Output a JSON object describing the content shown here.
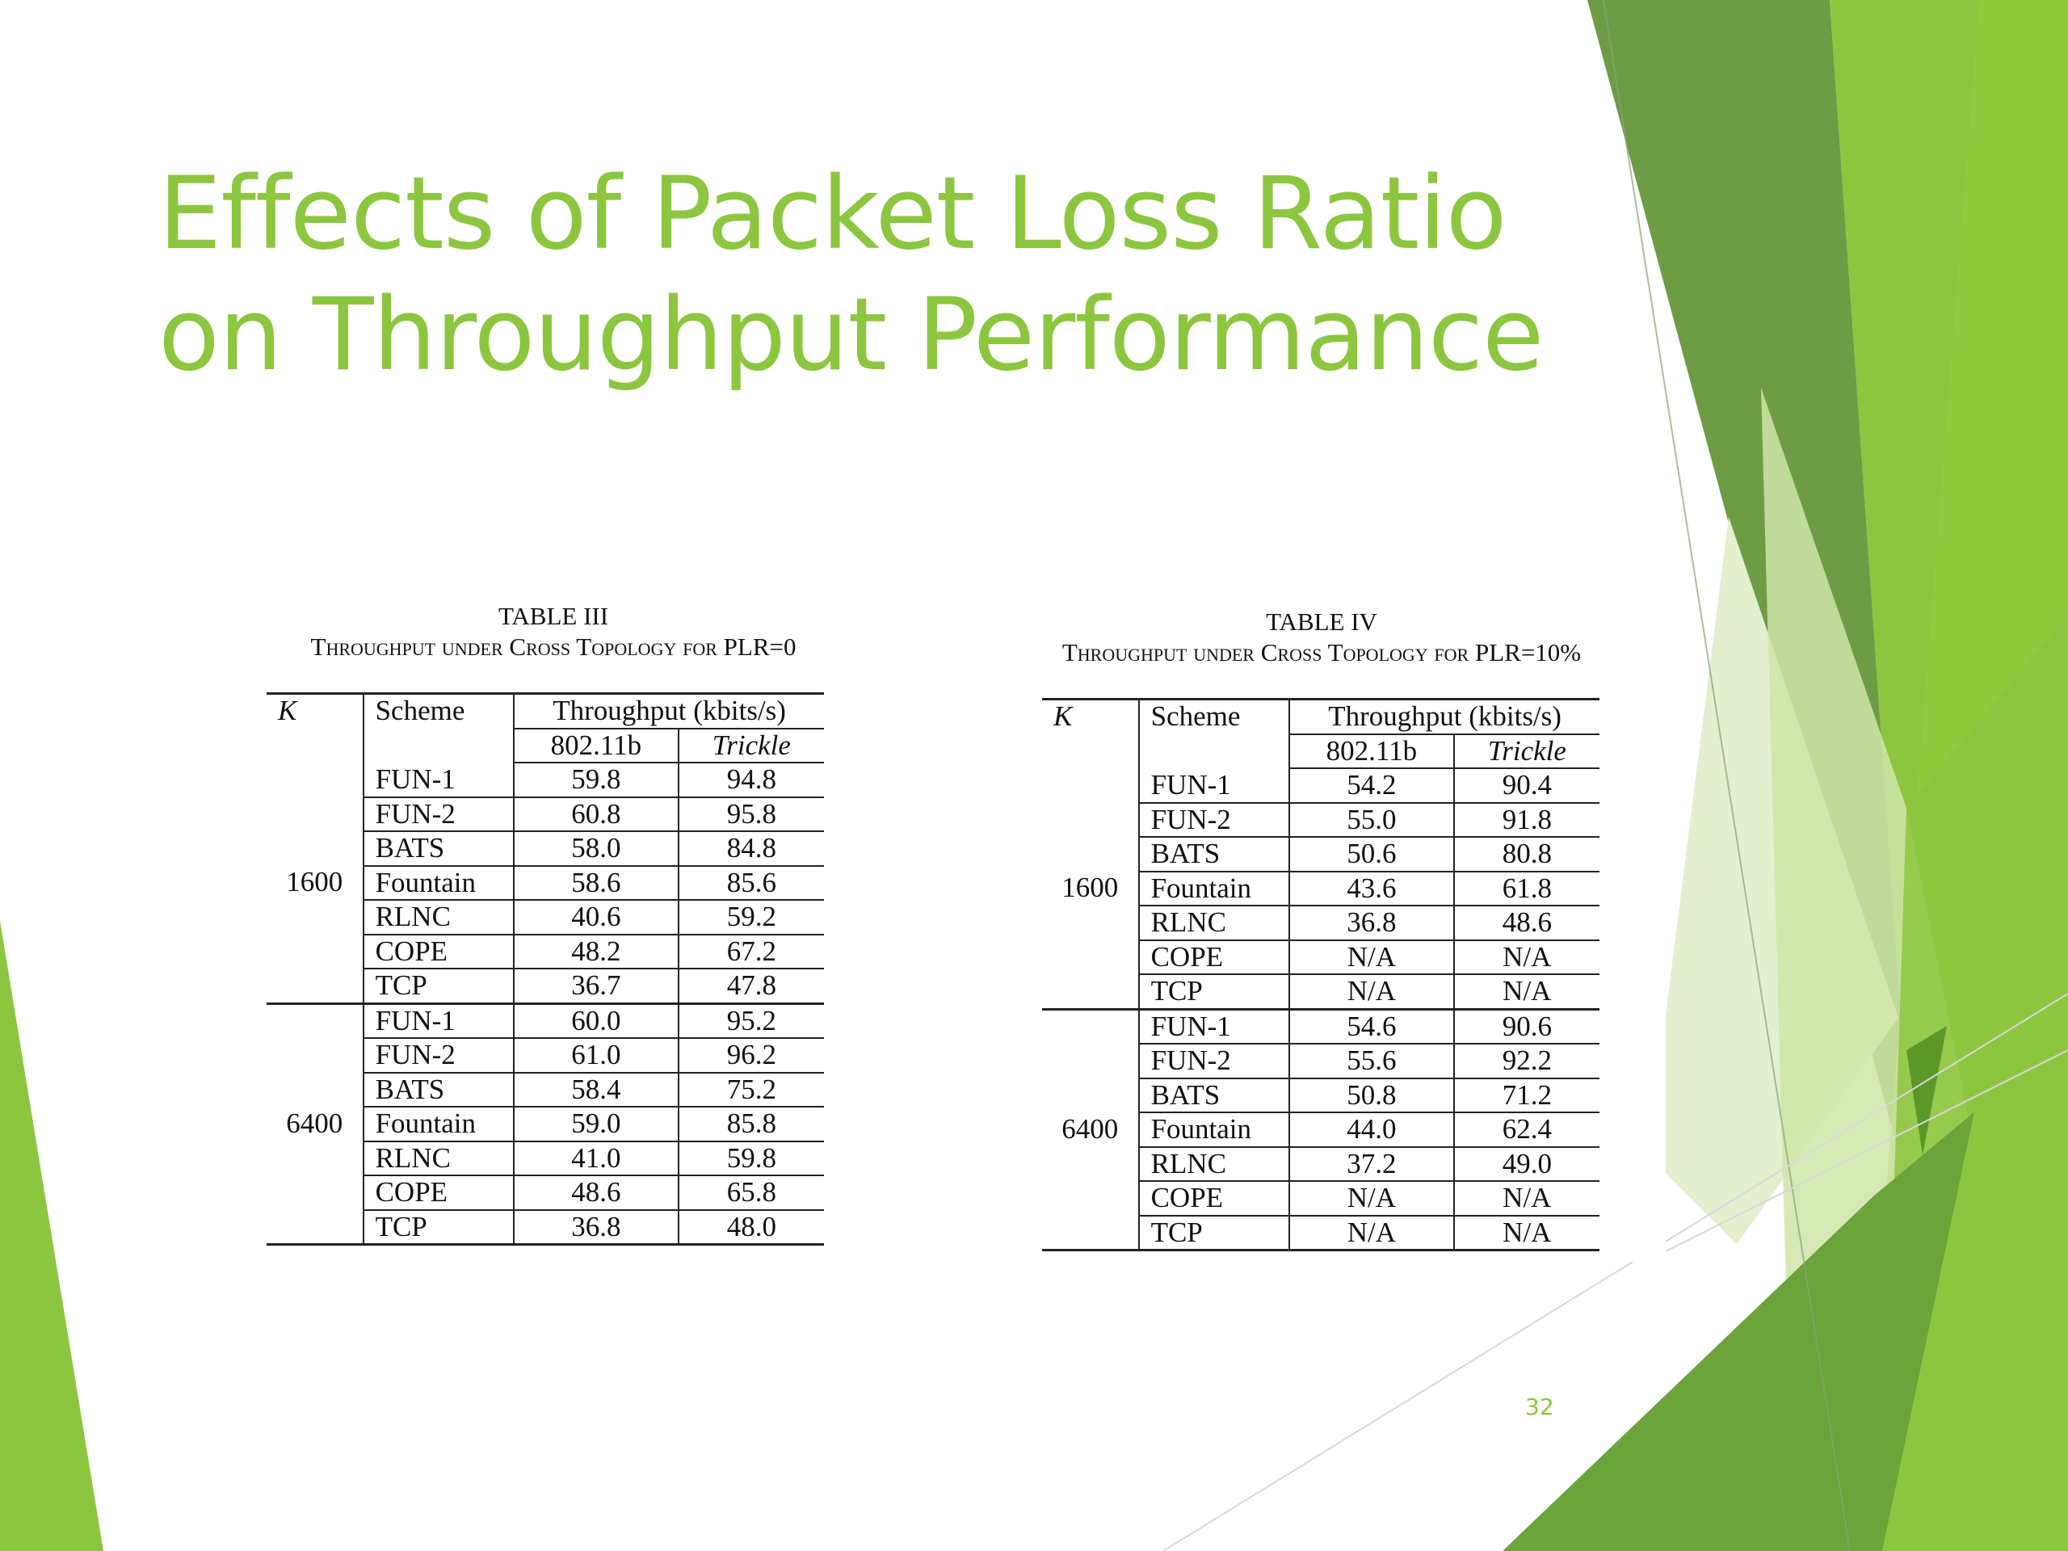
{
  "slide": {
    "title_line1": "Effects of Packet Loss Ratio",
    "title_line2": "on Throughput Performance",
    "page_number": "32",
    "colors": {
      "title": "#8cc63f",
      "accent_light": "#d6e9b5",
      "accent_mid": "#8cc63f",
      "accent_dark": "#6d9c45",
      "accent_deep": "#4e8a21"
    }
  },
  "table3": {
    "number": "TABLE III",
    "caption": "Throughput under Cross Topology for PLR=0",
    "columns": {
      "k": "K",
      "scheme": "Scheme",
      "throughput": "Throughput (kbits/s)",
      "col_a": "802.11b",
      "col_b": "Trickle"
    },
    "groups": [
      {
        "k": "1600",
        "rows": [
          {
            "scheme": "FUN-1",
            "a": "59.8",
            "b": "94.8"
          },
          {
            "scheme": "FUN-2",
            "a": "60.8",
            "b": "95.8"
          },
          {
            "scheme": "BATS",
            "a": "58.0",
            "b": "84.8"
          },
          {
            "scheme": "Fountain",
            "a": "58.6",
            "b": "85.6"
          },
          {
            "scheme": "RLNC",
            "a": "40.6",
            "b": "59.2"
          },
          {
            "scheme": "COPE",
            "a": "48.2",
            "b": "67.2"
          },
          {
            "scheme": "TCP",
            "a": "36.7",
            "b": "47.8"
          }
        ]
      },
      {
        "k": "6400",
        "rows": [
          {
            "scheme": "FUN-1",
            "a": "60.0",
            "b": "95.2"
          },
          {
            "scheme": "FUN-2",
            "a": "61.0",
            "b": "96.2"
          },
          {
            "scheme": "BATS",
            "a": "58.4",
            "b": "75.2"
          },
          {
            "scheme": "Fountain",
            "a": "59.0",
            "b": "85.8"
          },
          {
            "scheme": "RLNC",
            "a": "41.0",
            "b": "59.8"
          },
          {
            "scheme": "COPE",
            "a": "48.6",
            "b": "65.8"
          },
          {
            "scheme": "TCP",
            "a": "36.8",
            "b": "48.0"
          }
        ]
      }
    ]
  },
  "table4": {
    "number": "TABLE IV",
    "caption": "Throughput under Cross Topology for PLR=10%",
    "columns": {
      "k": "K",
      "scheme": "Scheme",
      "throughput": "Throughput (kbits/s)",
      "col_a": "802.11b",
      "col_b": "Trickle"
    },
    "groups": [
      {
        "k": "1600",
        "rows": [
          {
            "scheme": "FUN-1",
            "a": "54.2",
            "b": "90.4"
          },
          {
            "scheme": "FUN-2",
            "a": "55.0",
            "b": "91.8"
          },
          {
            "scheme": "BATS",
            "a": "50.6",
            "b": "80.8"
          },
          {
            "scheme": "Fountain",
            "a": "43.6",
            "b": "61.8"
          },
          {
            "scheme": "RLNC",
            "a": "36.8",
            "b": "48.6"
          },
          {
            "scheme": "COPE",
            "a": "N/A",
            "b": "N/A"
          },
          {
            "scheme": "TCP",
            "a": "N/A",
            "b": "N/A"
          }
        ]
      },
      {
        "k": "6400",
        "rows": [
          {
            "scheme": "FUN-1",
            "a": "54.6",
            "b": "90.6"
          },
          {
            "scheme": "FUN-2",
            "a": "55.6",
            "b": "92.2"
          },
          {
            "scheme": "BATS",
            "a": "50.8",
            "b": "71.2"
          },
          {
            "scheme": "Fountain",
            "a": "44.0",
            "b": "62.4"
          },
          {
            "scheme": "RLNC",
            "a": "37.2",
            "b": "49.0"
          },
          {
            "scheme": "COPE",
            "a": "N/A",
            "b": "N/A"
          },
          {
            "scheme": "TCP",
            "a": "N/A",
            "b": "N/A"
          }
        ]
      }
    ]
  }
}
